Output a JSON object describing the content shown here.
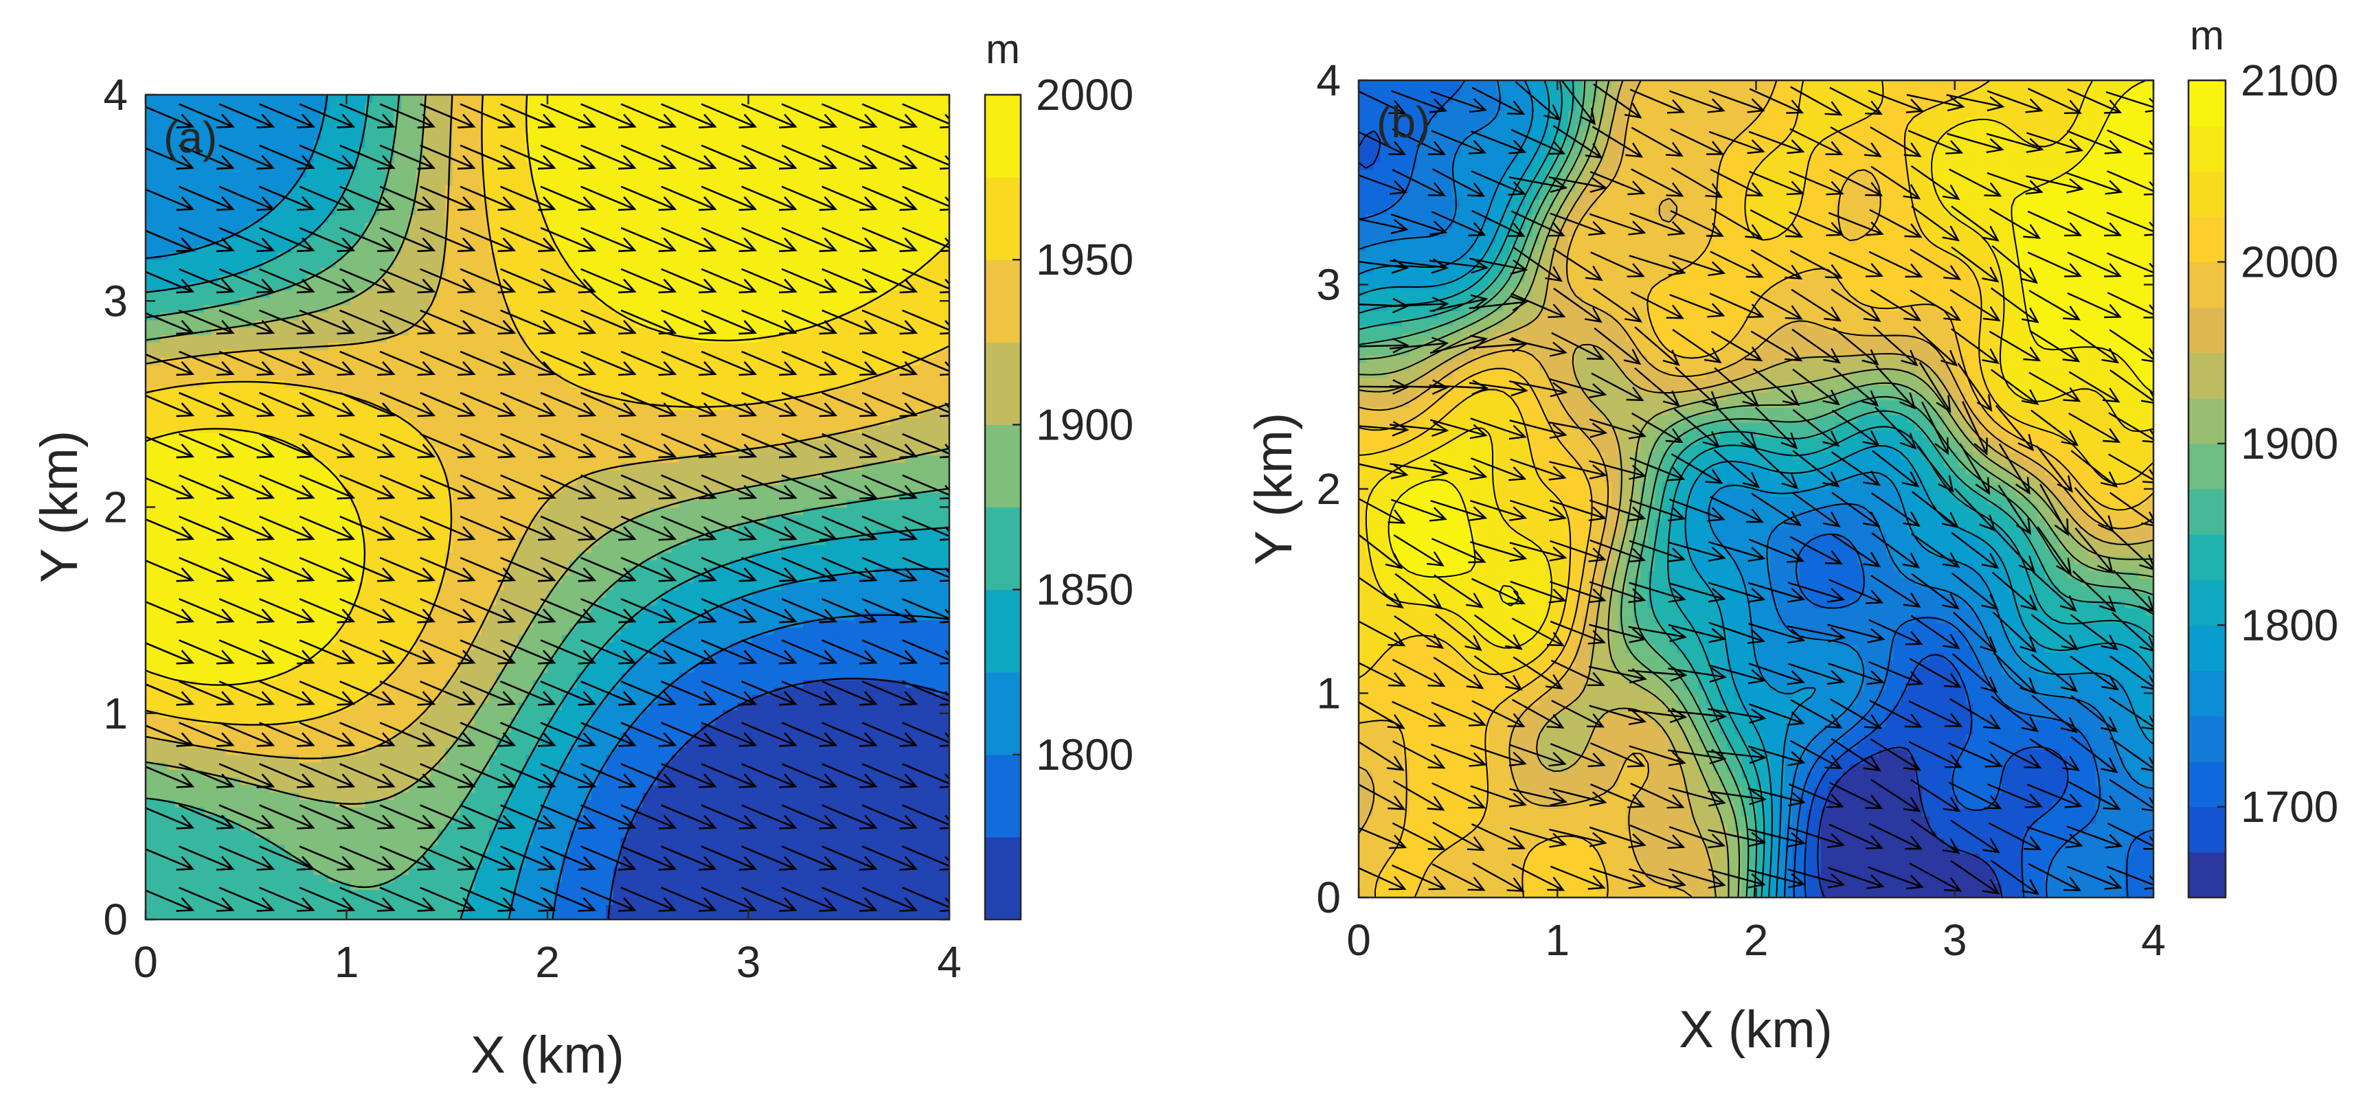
{
  "chart_data": [
    {
      "type": "heatmap",
      "subtype": "filled contour with wind vectors",
      "panel_label": "(a)",
      "xlabel": "X (km)",
      "ylabel": "Y (km)",
      "xlim": [
        0,
        4
      ],
      "ylim": [
        0,
        4
      ],
      "xticks": [
        "0",
        "1",
        "2",
        "3",
        "4"
      ],
      "yticks": [
        "0",
        "1",
        "2",
        "3",
        "4"
      ],
      "colorbar": {
        "unit": "m",
        "range": [
          1750,
          2000
        ],
        "ticks": [
          "1800",
          "1850",
          "1900",
          "1950",
          "2000"
        ],
        "tick_values": [
          1800,
          1850,
          1900,
          1950,
          2000
        ],
        "colormap": "parula"
      },
      "contour_levels": [
        1775,
        1800,
        1825,
        1850,
        1875,
        1900,
        1925,
        1950,
        1975
      ],
      "terrain_features": [
        {
          "x": 0.3,
          "y": 1.7,
          "elevation": 1990,
          "kind": "peak"
        },
        {
          "x": 2.8,
          "y": 3.9,
          "elevation": 1995,
          "kind": "peak"
        },
        {
          "x": 3.3,
          "y": 0.1,
          "elevation": 1755,
          "kind": "valley"
        },
        {
          "x": 0.0,
          "y": 4.0,
          "elevation": 1800,
          "kind": "low"
        },
        {
          "x": 0.0,
          "y": 0.0,
          "elevation": 1860,
          "kind": "slope"
        }
      ],
      "wind_direction": "from west-northwest toward east-southeast (uniform)",
      "wind_vector": [
        1.0,
        -0.42
      ]
    },
    {
      "type": "heatmap",
      "subtype": "filled contour with wind vectors",
      "panel_label": "(b)",
      "xlabel": "X (km)",
      "ylabel": "Y (km)",
      "xlim": [
        0,
        4
      ],
      "ylim": [
        0,
        4
      ],
      "xticks": [
        "0",
        "1",
        "2",
        "3",
        "4"
      ],
      "yticks": [
        "0",
        "1",
        "2",
        "3",
        "4"
      ],
      "colorbar": {
        "unit": "m",
        "range": [
          1650,
          2100
        ],
        "ticks": [
          "1700",
          "1800",
          "1900",
          "2000",
          "2100"
        ],
        "tick_values": [
          1700,
          1800,
          1900,
          2000,
          2100
        ],
        "colormap": "parula"
      },
      "contour_levels": [
        1675,
        1700,
        1725,
        1750,
        1775,
        1800,
        1825,
        1850,
        1875,
        1900,
        1925,
        1950,
        1975,
        2000,
        2025,
        2050,
        2075
      ],
      "terrain_features": [
        {
          "x": 0.5,
          "y": 1.8,
          "elevation": 2060,
          "kind": "ridge"
        },
        {
          "x": 1.8,
          "y": 3.3,
          "elevation": 2020,
          "kind": "peak"
        },
        {
          "x": 3.7,
          "y": 3.0,
          "elevation": 2090,
          "kind": "peak"
        },
        {
          "x": 2.7,
          "y": 0.3,
          "elevation": 1660,
          "kind": "valley"
        },
        {
          "x": 2.3,
          "y": 1.6,
          "elevation": 1740,
          "kind": "valley"
        },
        {
          "x": 0.2,
          "y": 3.7,
          "elevation": 1720,
          "kind": "low"
        },
        {
          "x": 1.3,
          "y": 0.2,
          "elevation": 2000,
          "kind": "knoll"
        }
      ],
      "wind_direction": "generally toward east-southeast, deflected by terrain",
      "wind_vector": [
        1.0,
        -0.45
      ]
    }
  ]
}
